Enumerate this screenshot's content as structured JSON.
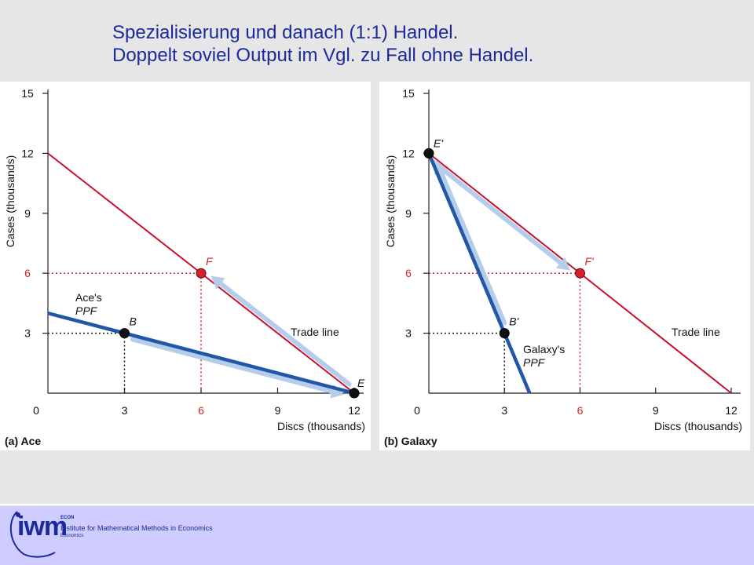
{
  "title": {
    "line1": "Spezialisierung und danach (1:1) Handel.",
    "line2": "Doppelt soviel Output im Vgl. zu Fall ohne Handel."
  },
  "colors": {
    "trade_line": "#c8102e",
    "ppf": "#2257a8",
    "arrow": "#b4cdea",
    "guide_red": "#d2232a",
    "guide_black": "#111111"
  },
  "chart_data": [
    {
      "type": "line",
      "panel_label": "(a) Ace",
      "xlabel": "Discs (thousands)",
      "ylabel": "Cases (thousands)",
      "xlim": [
        0,
        12
      ],
      "ylim": [
        0,
        15
      ],
      "x_ticks": [
        0,
        3,
        6,
        9,
        12
      ],
      "y_ticks": [
        3,
        6,
        9,
        12,
        15
      ],
      "x_tick_labels": [
        "0",
        "3",
        "6",
        "9",
        "12"
      ],
      "y_tick_labels": [
        "3",
        "6",
        "9",
        "12",
        "15"
      ],
      "series": [
        {
          "role": "trade_line",
          "label": "Trade line",
          "points": [
            [
              0,
              12
            ],
            [
              12,
              0
            ]
          ]
        },
        {
          "role": "ppf",
          "label": "Ace's PPF",
          "label_line1": "Ace's",
          "label_line2": "PPF",
          "points": [
            [
              0,
              4
            ],
            [
              12,
              0
            ]
          ]
        }
      ],
      "points": [
        {
          "name": "B",
          "x": 3,
          "y": 3,
          "color": "black",
          "guides": "black"
        },
        {
          "name": "F",
          "x": 6,
          "y": 6,
          "color": "red",
          "guides": "red"
        },
        {
          "name": "E",
          "x": 12,
          "y": 0,
          "color": "black",
          "guides": "none"
        }
      ],
      "arrows": [
        {
          "from": [
            3,
            3
          ],
          "to": [
            12,
            0
          ]
        },
        {
          "from": [
            12,
            0
          ],
          "to": [
            6,
            6
          ]
        }
      ]
    },
    {
      "type": "line",
      "panel_label": "(b) Galaxy",
      "xlabel": "Discs (thousands)",
      "ylabel": "Cases (thousands)",
      "xlim": [
        0,
        12
      ],
      "ylim": [
        0,
        15
      ],
      "x_ticks": [
        0,
        3,
        6,
        9,
        12
      ],
      "y_ticks": [
        3,
        6,
        9,
        12,
        15
      ],
      "x_tick_labels": [
        "0",
        "3",
        "6",
        "9",
        "12"
      ],
      "y_tick_labels": [
        "3",
        "6",
        "9",
        "12",
        "15"
      ],
      "series": [
        {
          "role": "trade_line",
          "label": "Trade line",
          "points": [
            [
              0,
              12
            ],
            [
              12,
              0
            ]
          ]
        },
        {
          "role": "ppf",
          "label": "Galaxy's PPF",
          "label_line1": "Galaxy's",
          "label_line2": "PPF",
          "points": [
            [
              0,
              12
            ],
            [
              4,
              0
            ]
          ]
        }
      ],
      "points": [
        {
          "name": "E'",
          "x": 0,
          "y": 12,
          "color": "black",
          "guides": "none"
        },
        {
          "name": "B'",
          "x": 3,
          "y": 3,
          "color": "black",
          "guides": "black"
        },
        {
          "name": "F'",
          "x": 6,
          "y": 6,
          "color": "red",
          "guides": "red"
        }
      ],
      "arrows": [
        {
          "from": [
            3,
            3
          ],
          "to": [
            0,
            12
          ]
        },
        {
          "from": [
            0,
            12
          ],
          "to": [
            6,
            6
          ]
        }
      ]
    }
  ],
  "footer": {
    "logo": "iwm",
    "econ": "ECON",
    "institute": "Institute for Mathematical Methods in Economics",
    "economics": "Economics"
  }
}
